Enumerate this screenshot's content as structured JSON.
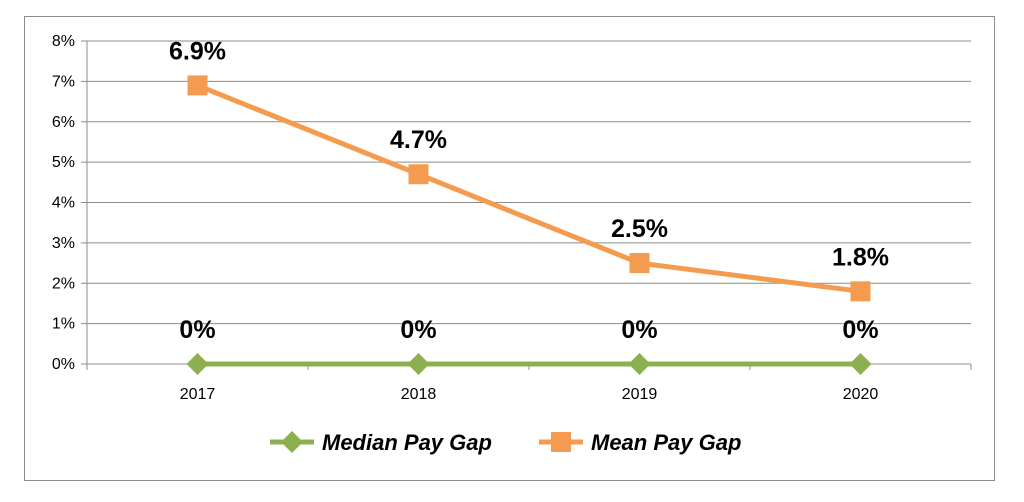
{
  "chart_data": {
    "type": "line",
    "categories": [
      "2017",
      "2018",
      "2019",
      "2020"
    ],
    "series": [
      {
        "name": "Median Pay Gap",
        "values": [
          0,
          0,
          0,
          0
        ],
        "labels": [
          "0%",
          "0%",
          "0%",
          "0%"
        ],
        "color": "#8cb04f",
        "marker": "diamond"
      },
      {
        "name": "Mean Pay Gap",
        "values": [
          6.9,
          4.7,
          2.5,
          1.8
        ],
        "labels": [
          "6.9%",
          "4.7%",
          "2.5%",
          "1.8%"
        ],
        "color": "#f59b4f",
        "marker": "square"
      }
    ],
    "yticks": [
      "0%",
      "1%",
      "2%",
      "3%",
      "4%",
      "5%",
      "6%",
      "7%",
      "8%"
    ],
    "ylim": [
      0,
      8
    ],
    "grid": true,
    "legend_position": "bottom",
    "title": "",
    "xlabel": "",
    "ylabel": ""
  }
}
